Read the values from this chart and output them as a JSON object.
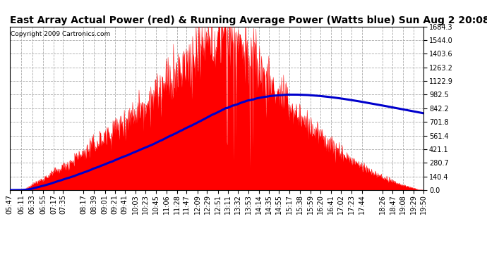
{
  "title": "East Array Actual Power (red) & Running Average Power (Watts blue) Sun Aug 2 20:08",
  "copyright": "Copyright 2009 Cartronics.com",
  "ymax": 1684.3,
  "yticks": [
    0.0,
    140.4,
    280.7,
    421.1,
    561.4,
    701.8,
    842.2,
    982.5,
    1122.9,
    1263.2,
    1403.6,
    1544.0,
    1684.3
  ],
  "xtick_labels": [
    "05:47",
    "06:11",
    "06:33",
    "06:55",
    "07:17",
    "07:35",
    "08:17",
    "08:39",
    "09:01",
    "09:21",
    "09:41",
    "10:03",
    "10:23",
    "10:45",
    "11:06",
    "11:28",
    "11:47",
    "12:09",
    "12:29",
    "12:51",
    "13:11",
    "13:32",
    "13:53",
    "14:14",
    "14:35",
    "14:55",
    "15:17",
    "15:38",
    "15:59",
    "16:20",
    "16:41",
    "17:02",
    "17:23",
    "17:44",
    "18:26",
    "18:47",
    "19:08",
    "19:29",
    "19:50"
  ],
  "bg_color": "#ffffff",
  "plot_bg_color": "#ffffff",
  "grid_color": "#aaaaaa",
  "actual_color": "#ff0000",
  "avg_color": "#0000cc",
  "title_fontsize": 10,
  "tick_fontsize": 7
}
